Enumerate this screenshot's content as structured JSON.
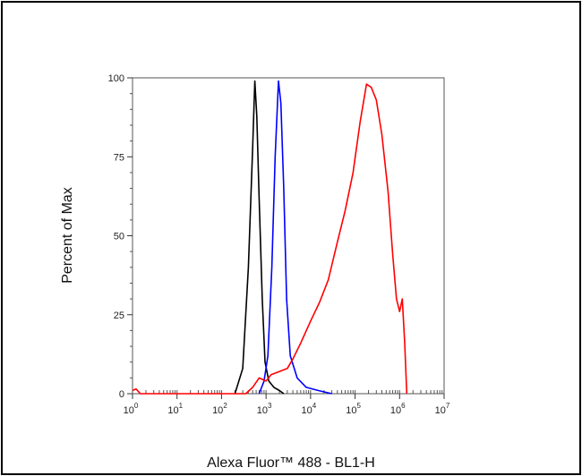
{
  "chart_data": {
    "type": "line",
    "title": "",
    "xlabel": "Alexa Fluor™ 488 - BL1-H",
    "ylabel": "Percent of Max",
    "x_scale": "log",
    "xlim": [
      1,
      10000000
    ],
    "ylim": [
      0,
      100
    ],
    "x_tick_values": [
      1,
      10,
      100,
      1000,
      10000,
      100000,
      1000000,
      10000000
    ],
    "x_tick_labels": [
      {
        "base": "10",
        "exp": "0"
      },
      {
        "base": "10",
        "exp": "1"
      },
      {
        "base": "10",
        "exp": "2"
      },
      {
        "base": "10",
        "exp": "3"
      },
      {
        "base": "10",
        "exp": "4"
      },
      {
        "base": "10",
        "exp": "5"
      },
      {
        "base": "10",
        "exp": "6"
      },
      {
        "base": "10",
        "exp": "7"
      }
    ],
    "y_ticks": [
      0,
      25,
      50,
      75,
      100
    ],
    "y_tick_labels": [
      "0",
      "25",
      "50",
      "75",
      "100"
    ],
    "grid": false,
    "legend": "none",
    "series": [
      {
        "color": "#000000",
        "points": [
          [
            200,
            0
          ],
          [
            300,
            8
          ],
          [
            400,
            40
          ],
          [
            500,
            78
          ],
          [
            560,
            99
          ],
          [
            620,
            88
          ],
          [
            700,
            62
          ],
          [
            820,
            30
          ],
          [
            950,
            10
          ],
          [
            1150,
            4
          ],
          [
            1500,
            2
          ],
          [
            2000,
            1
          ],
          [
            2500,
            0
          ]
        ]
      },
      {
        "color": "#0000ff",
        "points": [
          [
            700,
            0
          ],
          [
            900,
            4
          ],
          [
            1100,
            12
          ],
          [
            1350,
            40
          ],
          [
            1600,
            75
          ],
          [
            1900,
            99
          ],
          [
            2150,
            92
          ],
          [
            2500,
            65
          ],
          [
            2900,
            30
          ],
          [
            3500,
            12
          ],
          [
            5000,
            5
          ],
          [
            8000,
            2
          ],
          [
            15000,
            1
          ],
          [
            30000,
            0
          ]
        ]
      },
      {
        "color": "#ff0000",
        "points": [
          [
            1,
            1
          ],
          [
            1.2,
            1.5
          ],
          [
            1.5,
            0
          ],
          [
            350,
            0
          ],
          [
            500,
            2
          ],
          [
            700,
            5
          ],
          [
            1000,
            4
          ],
          [
            1300,
            6
          ],
          [
            2000,
            7
          ],
          [
            3000,
            8
          ],
          [
            4000,
            11
          ],
          [
            6000,
            16
          ],
          [
            10000,
            23
          ],
          [
            16000,
            29
          ],
          [
            25000,
            36
          ],
          [
            40000,
            48
          ],
          [
            60000,
            58
          ],
          [
            90000,
            70
          ],
          [
            130000,
            86
          ],
          [
            180000,
            98
          ],
          [
            230000,
            97
          ],
          [
            300000,
            93
          ],
          [
            400000,
            82
          ],
          [
            550000,
            64
          ],
          [
            700000,
            44
          ],
          [
            850000,
            30
          ],
          [
            1000000,
            26
          ],
          [
            1150000,
            30
          ],
          [
            1300000,
            16
          ],
          [
            1450000,
            0
          ]
        ]
      }
    ]
  }
}
